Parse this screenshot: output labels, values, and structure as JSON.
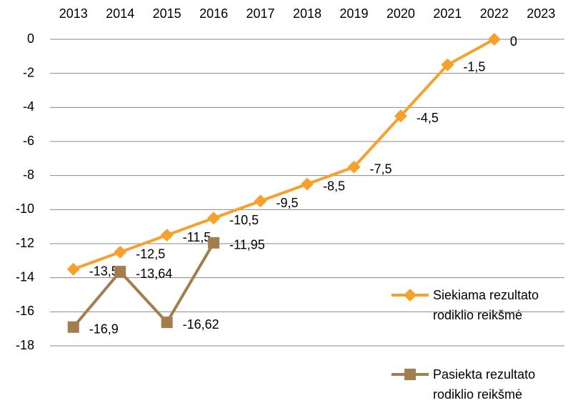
{
  "chart_data": {
    "type": "line",
    "categories": [
      "2013",
      "2014",
      "2015",
      "2016",
      "2017",
      "2018",
      "2019",
      "2020",
      "2021",
      "2022",
      "2023"
    ],
    "series": [
      {
        "name": "Siekiama rezultato rodiklio reikšmė",
        "color": "#f7a02c",
        "marker": "diamond",
        "values": [
          -13.5,
          -12.5,
          -11.5,
          -10.5,
          -9.5,
          -8.5,
          -7.5,
          -4.5,
          -1.5,
          0,
          null
        ],
        "value_labels": [
          "-13,5",
          "-12,5",
          "-11,5",
          "-10,5",
          "-9,5",
          "-8,5",
          "-7,5",
          "-4,5",
          "-1,5",
          "0",
          null
        ]
      },
      {
        "name": "Pasiekta rezultato rodiklio reikšmė",
        "color": "#a47d4f",
        "marker": "square",
        "values": [
          -16.9,
          -13.64,
          -16.62,
          -11.95,
          null,
          null,
          null,
          null,
          null,
          null,
          null
        ],
        "value_labels": [
          "-16,9",
          "-13,64",
          "-16,62",
          "-11,95",
          null,
          null,
          null,
          null,
          null,
          null,
          null
        ]
      }
    ],
    "ylim": [
      -18,
      0
    ],
    "yticks": [
      0,
      -2,
      -4,
      -6,
      -8,
      -10,
      -12,
      -14,
      -16,
      -18
    ],
    "grid": true
  }
}
